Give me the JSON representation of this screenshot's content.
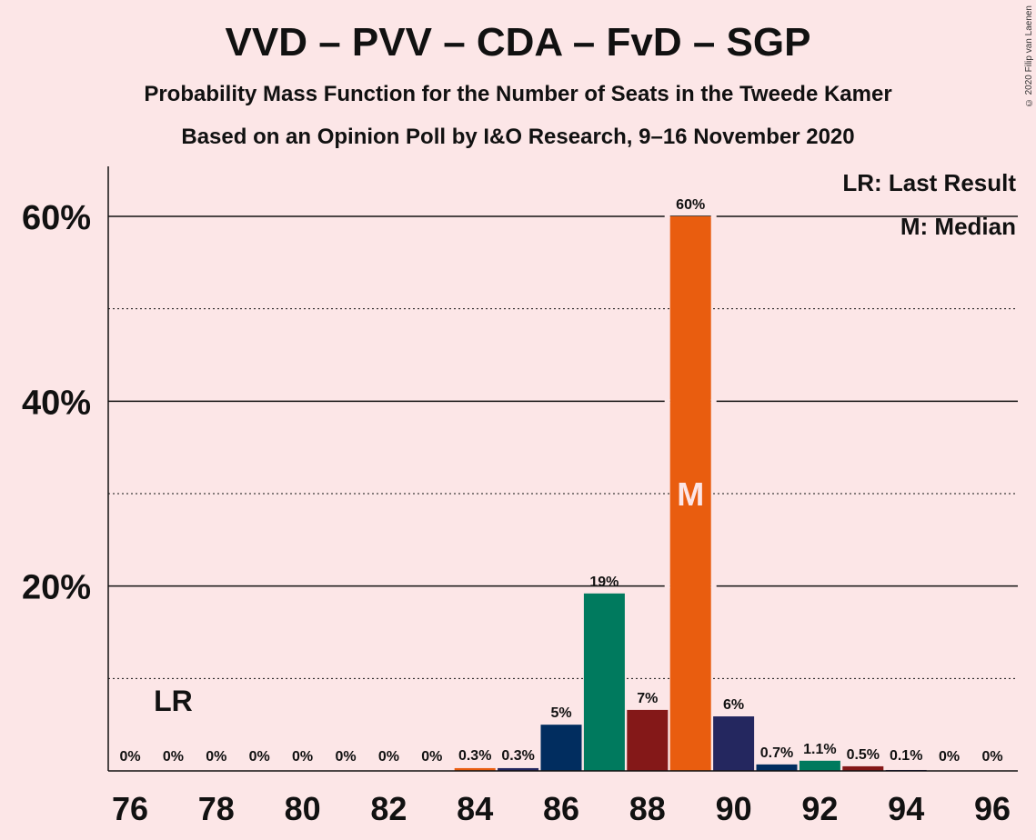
{
  "title": "VVD – PVV – CDA – FvD – SGP",
  "subtitle": "Probability Mass Function for the Number of Seats in the Tweede Kamer",
  "subtitle2": "Based on an Opinion Poll by I&O Research, 9–16 November 2020",
  "copyright": "© 2020 Filip van Laenen",
  "legend": {
    "lr": "LR: Last Result",
    "median": "M: Median"
  },
  "colors": {
    "background": "#fce6e7",
    "vvd": "#e95d0f",
    "pvv": "#012d5f",
    "cda": "#007a5e",
    "fvd": "#841818",
    "sgp": "#24275f"
  },
  "chart_data": {
    "type": "bar",
    "x": [
      76,
      77,
      78,
      79,
      80,
      81,
      82,
      83,
      84,
      85,
      86,
      87,
      88,
      89,
      90,
      91,
      92,
      93,
      94,
      95,
      96
    ],
    "values": [
      0,
      0,
      0,
      0,
      0,
      0,
      0,
      0,
      0.3,
      0.3,
      5,
      19.2,
      6.6,
      60,
      5.9,
      0.7,
      1.1,
      0.5,
      0.1,
      0,
      0
    ],
    "labels": [
      "0%",
      "0%",
      "0%",
      "0%",
      "0%",
      "0%",
      "0%",
      "0%",
      "0.3%",
      "0.3%",
      "5%",
      "19%",
      "7%",
      "60%",
      "6%",
      "0.7%",
      "1.1%",
      "0.5%",
      "0.1%",
      "0%",
      "0%"
    ],
    "bar_colors": [
      "#e95d0f",
      "#012d5f",
      "#007a5e",
      "#841818",
      "#24275f",
      "#e95d0f",
      "#012d5f",
      "#007a5e",
      "#e95d0f",
      "#24275f",
      "#012d5f",
      "#007a5e",
      "#841818",
      "#e95d0f",
      "#24275f",
      "#012d5f",
      "#007a5e",
      "#841818",
      "#24275f",
      "#e95d0f",
      "#012d5f"
    ],
    "x_ticks": [
      "76",
      "78",
      "80",
      "82",
      "84",
      "86",
      "88",
      "90",
      "92",
      "94",
      "96"
    ],
    "y_ticks": [
      "20%",
      "40%",
      "60%"
    ],
    "ylim": [
      0,
      65
    ],
    "last_result_seat": 77,
    "last_result_label": "LR",
    "median_seat": 89,
    "median_label": "M"
  }
}
